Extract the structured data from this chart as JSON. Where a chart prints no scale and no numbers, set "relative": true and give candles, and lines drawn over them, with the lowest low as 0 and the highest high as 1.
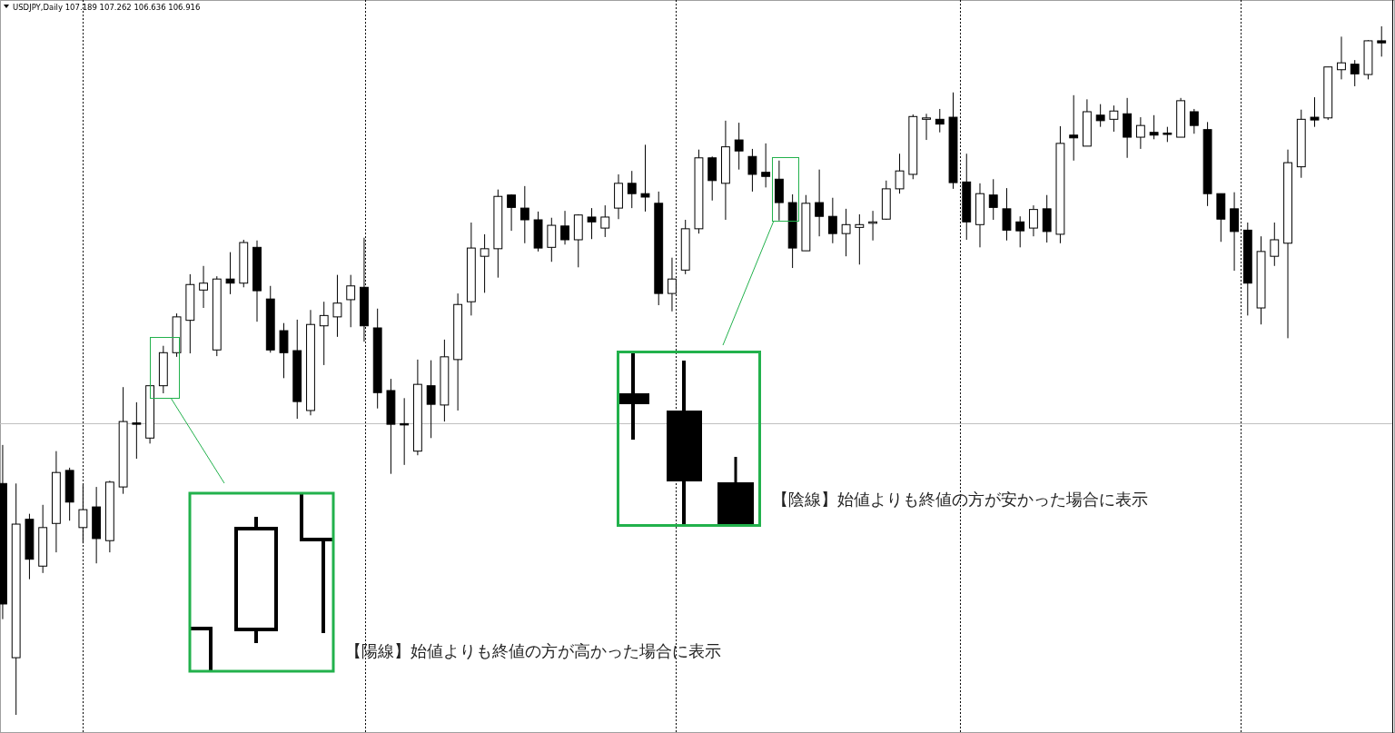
{
  "chart_data": {
    "type": "candlestick",
    "title": "USDJPY,Daily  107.189 107.262 106.636 106.916",
    "relative": true,
    "categories": [
      null,
      null,
      null,
      null,
      null,
      null,
      null,
      null,
      null,
      null,
      null,
      null,
      null,
      null,
      null,
      null,
      null,
      null,
      null,
      null,
      null,
      null,
      null,
      null,
      null,
      null,
      null,
      null,
      null,
      null,
      null,
      null,
      null,
      null,
      null,
      null,
      null,
      null,
      null,
      null,
      null,
      null,
      null,
      null,
      null,
      null,
      null,
      null,
      null,
      null,
      null,
      null,
      null,
      null,
      null,
      null,
      null,
      null,
      null,
      null,
      null,
      null,
      null,
      null,
      null,
      null,
      null,
      null,
      null,
      null,
      null,
      null,
      null,
      null,
      null,
      null,
      null,
      null,
      null,
      null,
      null,
      null,
      null,
      null,
      null,
      null,
      null,
      null,
      null,
      null,
      null,
      null,
      null,
      null,
      null,
      null,
      null,
      null,
      null,
      null,
      null,
      null,
      null,
      null
    ],
    "ohlc": [
      [
        0.336,
        0.392,
        0.139,
        0.161
      ],
      [
        0.083,
        0.336,
        0.0,
        0.277
      ],
      [
        0.284,
        0.292,
        0.197,
        0.226
      ],
      [
        0.216,
        0.305,
        0.206,
        0.272
      ],
      [
        0.278,
        0.383,
        0.236,
        0.352
      ],
      [
        0.355,
        0.359,
        0.282,
        0.309
      ],
      [
        0.272,
        0.334,
        0.249,
        0.298
      ],
      [
        0.302,
        0.331,
        0.22,
        0.256
      ],
      [
        0.253,
        0.34,
        0.236,
        0.338
      ],
      [
        0.331,
        0.476,
        0.321,
        0.426
      ],
      [
        0.423,
        0.454,
        0.372,
        0.423
      ],
      [
        0.402,
        0.478,
        0.394,
        0.478
      ],
      [
        0.478,
        0.536,
        0.467,
        0.526
      ],
      [
        0.526,
        0.583,
        0.52,
        0.578
      ],
      [
        0.573,
        0.64,
        0.525,
        0.625
      ],
      [
        0.617,
        0.652,
        0.591,
        0.627
      ],
      [
        0.53,
        0.637,
        0.521,
        0.633
      ],
      [
        0.633,
        0.672,
        0.611,
        0.627
      ],
      [
        0.627,
        0.69,
        0.621,
        0.686
      ],
      [
        0.679,
        0.689,
        0.571,
        0.616
      ],
      [
        0.604,
        0.623,
        0.526,
        0.53
      ],
      [
        0.558,
        0.569,
        0.489,
        0.526
      ],
      [
        0.529,
        0.574,
        0.43,
        0.455
      ],
      [
        0.442,
        0.588,
        0.435,
        0.567
      ],
      [
        0.565,
        0.6,
        0.508,
        0.58
      ],
      [
        0.578,
        0.639,
        0.549,
        0.598
      ],
      [
        0.603,
        0.639,
        0.563,
        0.623
      ],
      [
        0.621,
        0.693,
        0.542,
        0.565
      ],
      [
        0.562,
        0.59,
        0.445,
        0.468
      ],
      [
        0.471,
        0.488,
        0.35,
        0.422
      ],
      [
        0.422,
        0.46,
        0.363,
        0.422
      ],
      [
        0.383,
        0.516,
        0.377,
        0.48
      ],
      [
        0.478,
        0.515,
        0.402,
        0.451
      ],
      [
        0.45,
        0.545,
        0.426,
        0.52
      ],
      [
        0.516,
        0.612,
        0.442,
        0.596
      ],
      [
        0.6,
        0.715,
        0.58,
        0.678
      ],
      [
        0.666,
        0.698,
        0.613,
        0.677
      ],
      [
        0.677,
        0.763,
        0.635,
        0.753
      ],
      [
        0.755,
        0.756,
        0.703,
        0.737
      ],
      [
        0.736,
        0.768,
        0.685,
        0.719
      ],
      [
        0.719,
        0.731,
        0.673,
        0.678
      ],
      [
        0.679,
        0.722,
        0.658,
        0.711
      ],
      [
        0.71,
        0.732,
        0.683,
        0.69
      ],
      [
        0.69,
        0.727,
        0.65,
        0.726
      ],
      [
        0.723,
        0.736,
        0.691,
        0.716
      ],
      [
        0.707,
        0.74,
        0.694,
        0.723
      ],
      [
        0.736,
        0.785,
        0.72,
        0.772
      ],
      [
        0.772,
        0.79,
        0.736,
        0.757
      ],
      [
        0.757,
        0.828,
        0.731,
        0.752
      ],
      [
        0.743,
        0.76,
        0.595,
        0.612
      ],
      [
        0.612,
        0.664,
        0.586,
        0.633
      ],
      [
        0.646,
        0.719,
        0.64,
        0.706
      ],
      [
        0.706,
        0.821,
        0.699,
        0.809
      ],
      [
        0.809,
        0.811,
        0.747,
        0.776
      ],
      [
        0.772,
        0.863,
        0.719,
        0.825
      ],
      [
        0.835,
        0.86,
        0.792,
        0.819
      ],
      [
        0.811,
        0.822,
        0.76,
        0.785
      ],
      [
        0.788,
        0.83,
        0.766,
        0.782
      ],
      [
        0.778,
        0.805,
        0.718,
        0.744
      ],
      [
        0.744,
        0.756,
        0.649,
        0.678
      ],
      [
        0.674,
        0.755,
        0.674,
        0.743
      ],
      [
        0.744,
        0.792,
        0.695,
        0.724
      ],
      [
        0.724,
        0.751,
        0.685,
        0.699
      ],
      [
        0.699,
        0.735,
        0.666,
        0.712
      ],
      [
        0.708,
        0.727,
        0.654,
        0.712
      ],
      [
        0.714,
        0.732,
        0.689,
        0.716
      ],
      [
        0.72,
        0.776,
        0.719,
        0.764
      ],
      [
        0.764,
        0.815,
        0.757,
        0.79
      ],
      [
        0.785,
        0.872,
        0.778,
        0.869
      ],
      [
        0.865,
        0.873,
        0.835,
        0.867
      ],
      [
        0.865,
        0.88,
        0.846,
        0.858
      ],
      [
        0.868,
        0.904,
        0.764,
        0.773
      ],
      [
        0.774,
        0.815,
        0.69,
        0.716
      ],
      [
        0.712,
        0.772,
        0.679,
        0.757
      ],
      [
        0.755,
        0.778,
        0.719,
        0.737
      ],
      [
        0.735,
        0.765,
        0.689,
        0.704
      ],
      [
        0.716,
        0.724,
        0.679,
        0.703
      ],
      [
        0.707,
        0.74,
        0.695,
        0.734
      ],
      [
        0.735,
        0.755,
        0.686,
        0.702
      ],
      [
        0.698,
        0.855,
        0.685,
        0.83
      ],
      [
        0.842,
        0.9,
        0.805,
        0.838
      ],
      [
        0.826,
        0.894,
        0.826,
        0.876
      ],
      [
        0.871,
        0.887,
        0.854,
        0.863
      ],
      [
        0.865,
        0.885,
        0.847,
        0.877
      ],
      [
        0.873,
        0.896,
        0.809,
        0.839
      ],
      [
        0.839,
        0.868,
        0.822,
        0.856
      ],
      [
        0.846,
        0.871,
        0.836,
        0.842
      ],
      [
        0.844,
        0.854,
        0.832,
        0.844
      ],
      [
        0.839,
        0.896,
        0.839,
        0.892
      ],
      [
        0.876,
        0.88,
        0.844,
        0.856
      ],
      [
        0.85,
        0.861,
        0.739,
        0.757
      ],
      [
        0.757,
        0.757,
        0.687,
        0.72
      ],
      [
        0.735,
        0.759,
        0.645,
        0.702
      ],
      [
        0.704,
        0.715,
        0.58,
        0.627
      ],
      [
        0.591,
        0.695,
        0.567,
        0.673
      ],
      [
        0.666,
        0.715,
        0.652,
        0.69
      ],
      [
        0.685,
        0.821,
        0.547,
        0.802
      ],
      [
        0.796,
        0.879,
        0.78,
        0.865
      ],
      [
        0.868,
        0.897,
        0.854,
        0.864
      ],
      [
        0.867,
        0.941,
        0.864,
        0.941
      ],
      [
        0.937,
        0.985,
        0.923,
        0.947
      ],
      [
        0.945,
        0.951,
        0.913,
        0.931
      ],
      [
        0.93,
        0.98,
        0.923,
        0.979
      ],
      [
        0.979,
        1.0,
        0.956,
        0.976
      ]
    ],
    "grid": "x",
    "ref_lines": [
      {
        "axis": "y",
        "value": 0.423,
        "color": "#c0c0c0",
        "line_style": "solid"
      }
    ],
    "annotations": [
      "【陽線】始値よりも終値の方が高かった場合に表示",
      "【陰線】始値よりも終値の方が安かった場合に表示"
    ]
  }
}
